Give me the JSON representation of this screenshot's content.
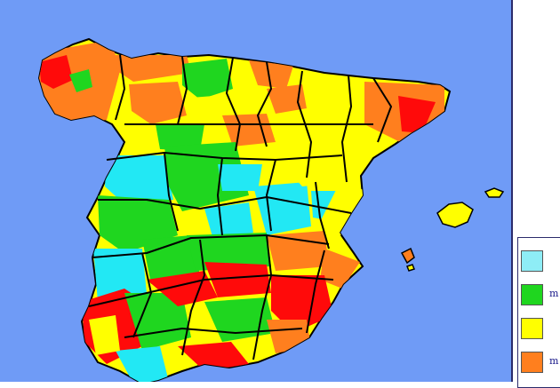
{
  "map": {
    "sea_color": "#6f9bf6",
    "border_color": "#000000",
    "class_colors": {
      "cyan": "#22e8f4",
      "green": "#1fd61f",
      "yellow": "#ffff00",
      "orange": "#ff7f1e",
      "red": "#ff0a0a"
    }
  },
  "legend": {
    "items": [
      {
        "color": "#8eedf6",
        "label": ""
      },
      {
        "color": "#1fd61f",
        "label": "m"
      },
      {
        "color": "#ffff00",
        "label": ""
      },
      {
        "color": "#ff7f1e",
        "label": "m"
      }
    ]
  }
}
